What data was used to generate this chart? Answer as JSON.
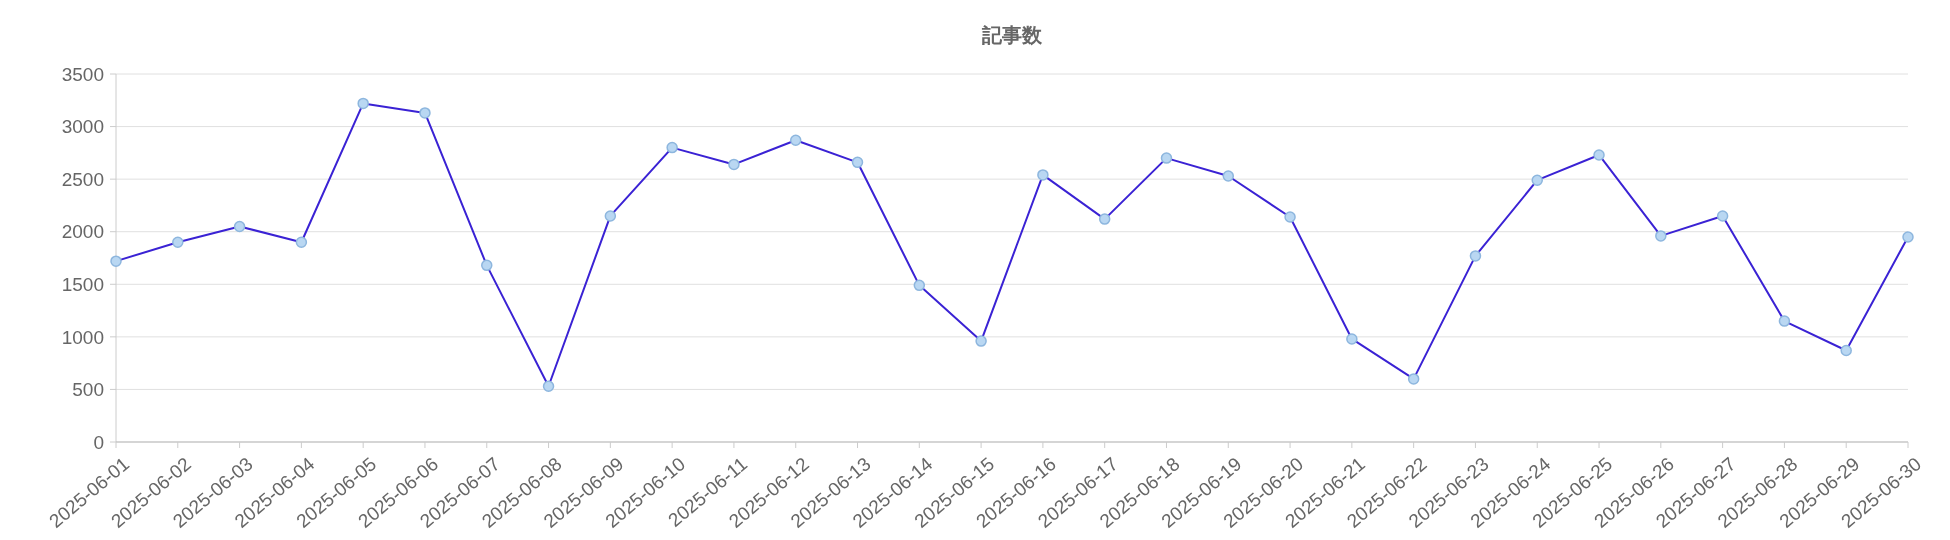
{
  "chart_data": {
    "type": "line",
    "title": "記事数",
    "categories": [
      "2025-06-01",
      "2025-06-02",
      "2025-06-03",
      "2025-06-04",
      "2025-06-05",
      "2025-06-06",
      "2025-06-07",
      "2025-06-08",
      "2025-06-09",
      "2025-06-10",
      "2025-06-11",
      "2025-06-12",
      "2025-06-13",
      "2025-06-14",
      "2025-06-15",
      "2025-06-16",
      "2025-06-17",
      "2025-06-18",
      "2025-06-19",
      "2025-06-20",
      "2025-06-21",
      "2025-06-22",
      "2025-06-23",
      "2025-06-24",
      "2025-06-25",
      "2025-06-26",
      "2025-06-27",
      "2025-06-28",
      "2025-06-29",
      "2025-06-30"
    ],
    "series": [
      {
        "color": "#3a22d4",
        "values": [
          1720,
          1900,
          2050,
          1900,
          3220,
          3130,
          1680,
          530,
          2150,
          2800,
          2640,
          2870,
          2660,
          1490,
          960,
          2540,
          2120,
          2700,
          2530,
          2140,
          980,
          600,
          1770,
          2490,
          2730,
          1960,
          2150,
          1150,
          870,
          1950
        ]
      }
    ],
    "ylim": [
      0,
      3500
    ],
    "yticks": [
      0,
      500,
      1000,
      1500,
      2000,
      2500,
      3000,
      3500
    ],
    "grid": "y",
    "marker": "circle",
    "line_style": "solid"
  }
}
